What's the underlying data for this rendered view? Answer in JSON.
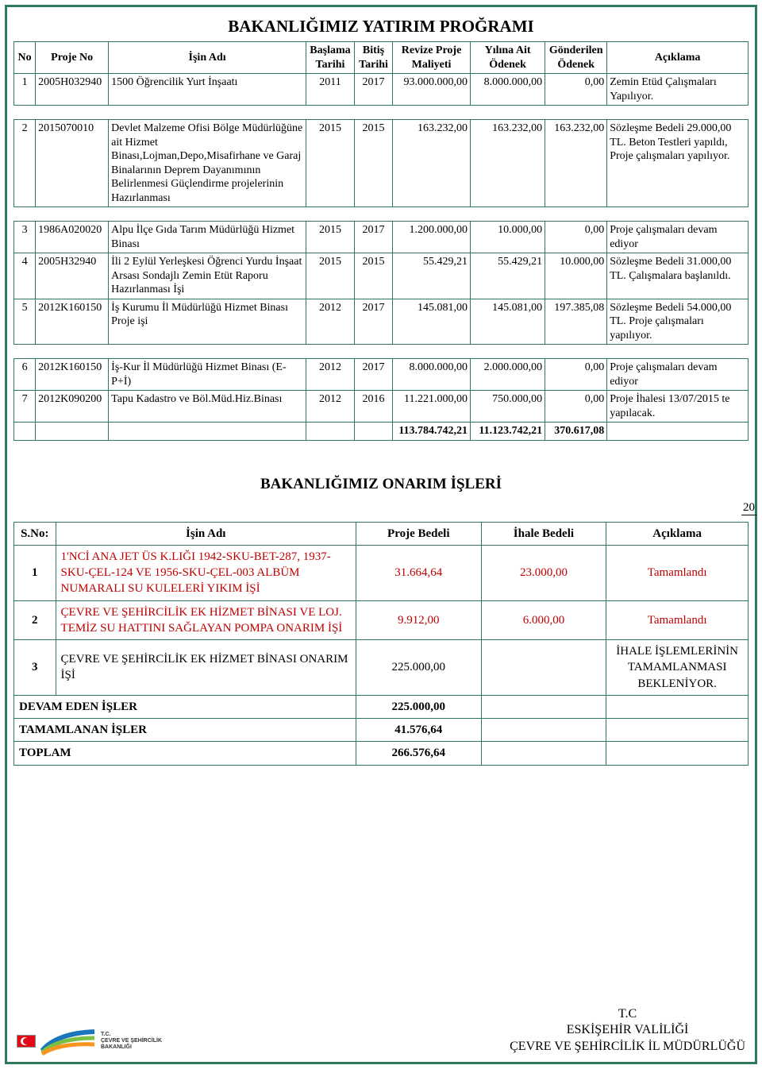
{
  "page_number": "20",
  "table1": {
    "title": "BAKANLIĞIMIZ YATIRIM PROĞRAMI",
    "columns": [
      "No",
      "Proje No",
      "İşin Adı",
      "Başlama Tarihi",
      "Bitiş Tarihi",
      "Revize Proje Maliyeti",
      "Yılına Ait Ödenek",
      "Gönderilen Ödenek",
      "Açıklama"
    ],
    "segments": [
      [
        {
          "no": "1",
          "pno": "2005H032940",
          "ad": "1500 Öğrencilik Yurt İnşaatı",
          "bas": "2011",
          "bit": "2017",
          "rev": "93.000.000,00",
          "yil": "8.000.000,00",
          "gon": "0,00",
          "acik": "Zemin Etüd Çalışmaları Yapılıyor."
        }
      ],
      [
        {
          "no": "2",
          "pno": "2015070010",
          "ad": "Devlet Malzeme Ofisi Bölge Müdürlüğüne ait Hizmet Binası,Lojman,Depo,Misafirhane ve Garaj Binalarının Deprem Dayanımının Belirlenmesi Güçlendirme projelerinin Hazırlanması",
          "bas": "2015",
          "bit": "2015",
          "rev": "163.232,00",
          "yil": "163.232,00",
          "gon": "163.232,00",
          "acik": "Sözleşme Bedeli 29.000,00 TL. Beton Testleri yapıldı, Proje çalışmaları yapılıyor."
        }
      ],
      [
        {
          "no": "3",
          "pno": "1986A020020",
          "ad": "Alpu İlçe Gıda Tarım Müdürlüğü Hizmet Binası",
          "bas": "2015",
          "bit": "2017",
          "rev": "1.200.000,00",
          "yil": "10.000,00",
          "gon": "0,00",
          "acik": "Proje çalışmaları devam ediyor"
        },
        {
          "no": "4",
          "pno": "2005H32940",
          "ad": "İli 2 Eylül Yerleşkesi Öğrenci Yurdu İnşaat Arsası Sondajlı Zemin Etüt Raporu Hazırlanması İşi",
          "bas": "2015",
          "bit": "2015",
          "rev": "55.429,21",
          "yil": "55.429,21",
          "gon": "10.000,00",
          "acik": "Sözleşme Bedeli 31.000,00 TL. Çalışmalara başlanıldı."
        },
        {
          "no": "5",
          "pno": "2012K160150",
          "ad": "İş Kurumu İl Müdürlüğü Hizmet Binası Proje işi",
          "bas": "2012",
          "bit": "2017",
          "rev": "145.081,00",
          "yil": "145.081,00",
          "gon": "197.385,08",
          "acik": "Sözleşme Bedeli 54.000,00 TL.  Proje çalışmaları yapılıyor."
        }
      ],
      [
        {
          "no": "6",
          "pno": "2012K160150",
          "ad": "İş-Kur İl Müdürlüğü Hizmet Binası (E-P+İ)",
          "bas": "2012",
          "bit": "2017",
          "rev": "8.000.000,00",
          "yil": "2.000.000,00",
          "gon": "0,00",
          "acik": "Proje çalışmaları devam ediyor"
        },
        {
          "no": "7",
          "pno": "2012K090200",
          "ad": "Tapu Kadastro ve Böl.Müd.Hiz.Binası",
          "bas": "2012",
          "bit": "2016",
          "rev": "11.221.000,00",
          "yil": "750.000,00",
          "gon": "0,00",
          "acik": "Proje İhalesi 13/07/2015 te yapılacak."
        }
      ]
    ],
    "totals": {
      "rev": "113.784.742,21",
      "yil": "11.123.742,21",
      "gon": "370.617,08"
    }
  },
  "table2": {
    "title": "BAKANLIĞIMIZ ONARIM İŞLERİ",
    "columns": [
      "S.No:",
      "İşin Adı",
      "Proje Bedeli",
      "İhale Bedeli",
      "Açıklama"
    ],
    "rows": [
      {
        "sno": "1",
        "ad": "1'NCİ ANA JET ÜS K.LIĞI 1942-SKU-BET-287, 1937-SKU-ÇEL-124 VE 1956-SKU-ÇEL-003 ALBÜM NUMARALI SU KULELERİ YIKIM İŞİ",
        "bed": "31.664,64",
        "iha": "23.000,00",
        "acik": "Tamamlandı",
        "red": true
      },
      {
        "sno": "2",
        "ad": "ÇEVRE VE ŞEHİRCİLİK EK HİZMET BİNASI VE LOJ. TEMİZ SU HATTINI SAĞLAYAN POMPA ONARIM İŞİ",
        "bed": "9.912,00",
        "iha": "6.000,00",
        "acik": "Tamamlandı",
        "red": true
      },
      {
        "sno": "3",
        "ad": "ÇEVRE VE ŞEHİRCİLİK EK HİZMET BİNASI ONARIM İŞİ",
        "bed": "225.000,00",
        "iha": "",
        "acik": "İHALE İŞLEMLERİNİN TAMAMLANMASI BEKLENİYOR.",
        "red": false
      }
    ],
    "summary": [
      {
        "label": "DEVAM EDEN İŞLER",
        "val": "225.000,00"
      },
      {
        "label": "TAMAMLANAN İŞLER",
        "val": "41.576,64"
      },
      {
        "label": "TOPLAM",
        "val": "266.576,64"
      }
    ]
  },
  "footer": {
    "line1": "T.C",
    "line2": "ESKİŞEHİR VALİLİĞİ",
    "line3": "ÇEVRE VE ŞEHİRCİLİK İL MÜDÜRLÜĞÜ",
    "logo_text1": "T.C.",
    "logo_text2": "ÇEVRE VE ŞEHİRCİLİK",
    "logo_text3": "BAKANLIĞI"
  },
  "colors": {
    "border": "#2f7a5a",
    "red": "#c00000",
    "text": "#000000"
  }
}
